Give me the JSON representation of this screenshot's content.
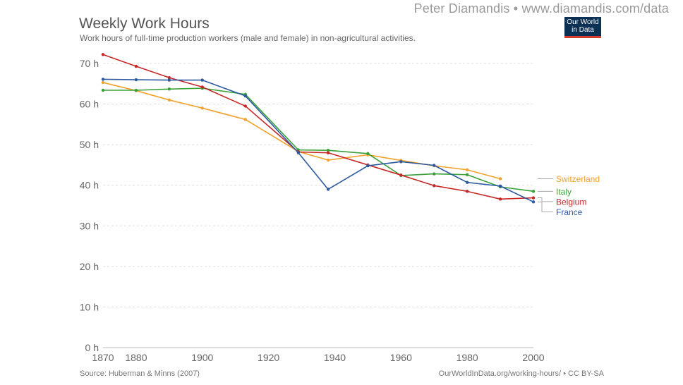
{
  "header": {
    "watermark": "Peter Diamandis  •  www.diamandis.com/data",
    "logo_line1": "Our World",
    "logo_line2": "in Data"
  },
  "footer": {
    "source": "Source: Huberman & Minns (2007)",
    "license": "OurWorldInData.org/working-hours/ • CC BY-SA"
  },
  "chart_data": {
    "type": "line",
    "title": "Weekly Work Hours",
    "subtitle": "Work hours of full-time production workers (male and female) in non-agricultural activities.",
    "xlabel": "",
    "ylabel": "",
    "xlim": [
      1870,
      2000
    ],
    "ylim": [
      0,
      70
    ],
    "x_ticks": [
      1870,
      1880,
      1900,
      1920,
      1940,
      1960,
      1980,
      2000
    ],
    "y_ticks": [
      0,
      10,
      20,
      30,
      40,
      50,
      60,
      70
    ],
    "y_tick_labels": [
      "0 h",
      "10 h",
      "20 h",
      "30 h",
      "40 h",
      "50 h",
      "60 h",
      "70 h"
    ],
    "grid": "horizontal-dashed",
    "legend": "right, inline labels",
    "series": [
      {
        "name": "Switzerland",
        "color": "#f2a12b",
        "points": [
          [
            1870,
            65.3
          ],
          [
            1880,
            63.3
          ],
          [
            1890,
            61.0
          ],
          [
            1900,
            59.0
          ],
          [
            1913,
            56.2
          ],
          [
            1929,
            48.3
          ],
          [
            1938,
            46.2
          ],
          [
            1950,
            47.5
          ],
          [
            1960,
            46.1
          ],
          [
            1970,
            44.8
          ],
          [
            1980,
            43.8
          ],
          [
            1990,
            41.6
          ]
        ]
      },
      {
        "name": "Italy",
        "color": "#3aa03a",
        "points": [
          [
            1870,
            63.4
          ],
          [
            1880,
            63.4
          ],
          [
            1890,
            63.7
          ],
          [
            1900,
            63.9
          ],
          [
            1913,
            62.4
          ],
          [
            1929,
            48.7
          ],
          [
            1938,
            48.6
          ],
          [
            1950,
            47.8
          ],
          [
            1960,
            42.4
          ],
          [
            1970,
            42.8
          ],
          [
            1980,
            42.6
          ],
          [
            1990,
            39.6
          ],
          [
            2000,
            38.5
          ]
        ]
      },
      {
        "name": "Belgium",
        "color": "#c62828",
        "points": [
          [
            1870,
            72.2
          ],
          [
            1880,
            69.3
          ],
          [
            1890,
            66.5
          ],
          [
            1900,
            64.2
          ],
          [
            1913,
            59.5
          ],
          [
            1929,
            48.2
          ],
          [
            1938,
            48.0
          ],
          [
            1950,
            45.0
          ],
          [
            1960,
            42.5
          ],
          [
            1970,
            39.9
          ],
          [
            1980,
            38.5
          ],
          [
            1990,
            36.6
          ],
          [
            2000,
            36.9
          ]
        ]
      },
      {
        "name": "France",
        "color": "#2d5aa0",
        "points": [
          [
            1870,
            66.1
          ],
          [
            1880,
            66.0
          ],
          [
            1890,
            65.9
          ],
          [
            1900,
            65.9
          ],
          [
            1913,
            62.0
          ],
          [
            1929,
            48.0
          ],
          [
            1938,
            39.0
          ],
          [
            1950,
            44.8
          ],
          [
            1960,
            45.8
          ],
          [
            1970,
            44.9
          ],
          [
            1980,
            40.7
          ],
          [
            1990,
            39.8
          ],
          [
            2000,
            35.9
          ]
        ]
      }
    ]
  }
}
